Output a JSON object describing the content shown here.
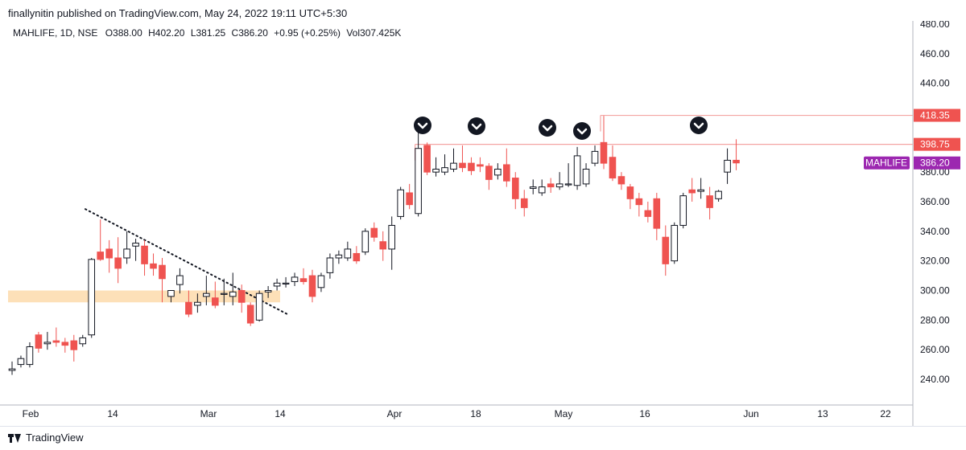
{
  "header": {
    "publisher_line": "finallynitin published on TradingView.com, May 24, 2022 19:11 UTC+5:30"
  },
  "legend": {
    "symbol": "MAHLIFE, 1D, NSE",
    "o_label": "O",
    "o_value": "388.00",
    "h_label": "H",
    "h_value": "402.20",
    "l_label": "L",
    "l_value": "381.25",
    "c_label": "C",
    "c_value": "386.20",
    "change": "+0.95 (+0.25%)",
    "vol_label": "Vol",
    "vol_value": "307.425K"
  },
  "footer": {
    "brand": "TradingView"
  },
  "colors": {
    "up": "#ffffff",
    "up_border": "#131722",
    "down": "#ef5350",
    "level": "#ef5350",
    "symbol_tag": "#9c27b0",
    "zone": "#fde0b8"
  },
  "chart_data": {
    "type": "candlestick",
    "y_ticks": [
      "480.00",
      "460.00",
      "440.00",
      "420.00",
      "400.00",
      "380.00",
      "360.00",
      "340.00",
      "320.00",
      "300.00",
      "280.00",
      "260.00",
      "240.00"
    ],
    "x_ticks": [
      "Feb",
      "14",
      "Mar",
      "14",
      "Apr",
      "18",
      "May",
      "16",
      "Jun",
      "13",
      "22"
    ],
    "ylim": [
      230,
      485
    ],
    "grid": false,
    "price_tags": [
      {
        "label": "418.35",
        "value": 418.35,
        "color": "#ef5350"
      },
      {
        "label": "398.75",
        "value": 398.75,
        "color": "#ef5350"
      },
      {
        "label": "MAHLIFE",
        "value": 386.2,
        "color": "#9c27b0",
        "price": "386.20"
      }
    ],
    "resistance_levels": [
      {
        "value": 398.75,
        "from": "Mar 30"
      },
      {
        "value": 418.35,
        "from": "May 2"
      }
    ],
    "support_zone": {
      "low": 292,
      "high": 300
    },
    "trendline": [
      {
        "date": "Feb 10",
        "value": 355
      },
      {
        "date": "Mar 14",
        "value": 284
      }
    ],
    "markers": [
      "Apr 6",
      "Apr 19",
      "Apr 28",
      "May 4",
      "May 24"
    ],
    "candles": [
      {
        "d": "Jan 27",
        "o": 246,
        "h": 252,
        "l": 243,
        "c": 247
      },
      {
        "d": "Jan 28",
        "o": 250,
        "h": 256,
        "l": 248,
        "c": 254
      },
      {
        "d": "Jan 31",
        "o": 250,
        "h": 265,
        "l": 248,
        "c": 262
      },
      {
        "d": "Feb 1",
        "o": 270,
        "h": 272,
        "l": 258,
        "c": 261
      },
      {
        "d": "Feb 2",
        "o": 264,
        "h": 272,
        "l": 260,
        "c": 265
      },
      {
        "d": "Feb 3",
        "o": 266,
        "h": 275,
        "l": 262,
        "c": 265
      },
      {
        "d": "Feb 4",
        "o": 265,
        "h": 268,
        "l": 258,
        "c": 263
      },
      {
        "d": "Feb 7",
        "o": 266,
        "h": 270,
        "l": 252,
        "c": 260
      },
      {
        "d": "Feb 8",
        "o": 264,
        "h": 270,
        "l": 262,
        "c": 268
      },
      {
        "d": "Feb 9",
        "o": 270,
        "h": 322,
        "l": 268,
        "c": 321
      },
      {
        "d": "Feb 10",
        "o": 326,
        "h": 348,
        "l": 320,
        "c": 321
      },
      {
        "d": "Feb 11",
        "o": 328,
        "h": 334,
        "l": 312,
        "c": 322
      },
      {
        "d": "Feb 14",
        "o": 322,
        "h": 336,
        "l": 305,
        "c": 315
      },
      {
        "d": "Feb 15",
        "o": 322,
        "h": 340,
        "l": 318,
        "c": 328
      },
      {
        "d": "Feb 16",
        "o": 330,
        "h": 335,
        "l": 320,
        "c": 332
      },
      {
        "d": "Feb 17",
        "o": 330,
        "h": 334,
        "l": 310,
        "c": 318
      },
      {
        "d": "Feb 18",
        "o": 318,
        "h": 325,
        "l": 310,
        "c": 315
      },
      {
        "d": "Feb 21",
        "o": 317,
        "h": 322,
        "l": 292,
        "c": 308
      },
      {
        "d": "Feb 22",
        "o": 296,
        "h": 300,
        "l": 292,
        "c": 300
      },
      {
        "d": "Feb 23",
        "o": 304,
        "h": 315,
        "l": 298,
        "c": 310
      },
      {
        "d": "Feb 24",
        "o": 292,
        "h": 300,
        "l": 282,
        "c": 284
      },
      {
        "d": "Feb 25",
        "o": 290,
        "h": 298,
        "l": 285,
        "c": 292
      },
      {
        "d": "Feb 28",
        "o": 296,
        "h": 310,
        "l": 290,
        "c": 298
      },
      {
        "d": "Mar 2",
        "o": 295,
        "h": 306,
        "l": 288,
        "c": 290
      },
      {
        "d": "Mar 3",
        "o": 298,
        "h": 308,
        "l": 290,
        "c": 298
      },
      {
        "d": "Mar 4",
        "o": 296,
        "h": 312,
        "l": 290,
        "c": 299
      },
      {
        "d": "Mar 7",
        "o": 300,
        "h": 304,
        "l": 285,
        "c": 292
      },
      {
        "d": "Mar 8",
        "o": 290,
        "h": 292,
        "l": 276,
        "c": 278
      },
      {
        "d": "Mar 9",
        "o": 280,
        "h": 300,
        "l": 279,
        "c": 298
      },
      {
        "d": "Mar 10",
        "o": 299,
        "h": 303,
        "l": 295,
        "c": 300
      },
      {
        "d": "Mar 11",
        "o": 303,
        "h": 308,
        "l": 300,
        "c": 305
      },
      {
        "d": "Mar 14",
        "o": 305,
        "h": 309,
        "l": 302,
        "c": 305
      },
      {
        "d": "Mar 15",
        "o": 306,
        "h": 312,
        "l": 303,
        "c": 309
      },
      {
        "d": "Mar 16",
        "o": 308,
        "h": 315,
        "l": 304,
        "c": 306
      },
      {
        "d": "Mar 17",
        "o": 310,
        "h": 314,
        "l": 292,
        "c": 296
      },
      {
        "d": "Mar 21",
        "o": 302,
        "h": 312,
        "l": 299,
        "c": 310
      },
      {
        "d": "Mar 22",
        "o": 312,
        "h": 325,
        "l": 308,
        "c": 322
      },
      {
        "d": "Mar 23",
        "o": 322,
        "h": 327,
        "l": 318,
        "c": 324
      },
      {
        "d": "Mar 24",
        "o": 322,
        "h": 333,
        "l": 320,
        "c": 328
      },
      {
        "d": "Mar 25",
        "o": 325,
        "h": 330,
        "l": 318,
        "c": 320
      },
      {
        "d": "Mar 28",
        "o": 326,
        "h": 342,
        "l": 324,
        "c": 340
      },
      {
        "d": "Mar 29",
        "o": 342,
        "h": 346,
        "l": 333,
        "c": 336
      },
      {
        "d": "Mar 30",
        "o": 333,
        "h": 340,
        "l": 320,
        "c": 328
      },
      {
        "d": "Mar 31",
        "o": 328,
        "h": 350,
        "l": 314,
        "c": 344
      },
      {
        "d": "Apr 1",
        "o": 350,
        "h": 370,
        "l": 348,
        "c": 368
      },
      {
        "d": "Apr 4",
        "o": 366,
        "h": 372,
        "l": 355,
        "c": 358
      },
      {
        "d": "Apr 5",
        "o": 352,
        "h": 408,
        "l": 350,
        "c": 396
      },
      {
        "d": "Apr 6",
        "o": 398,
        "h": 400,
        "l": 378,
        "c": 380
      },
      {
        "d": "Apr 7",
        "o": 380,
        "h": 390,
        "l": 377,
        "c": 382
      },
      {
        "d": "Apr 8",
        "o": 380,
        "h": 392,
        "l": 378,
        "c": 383
      },
      {
        "d": "Apr 11",
        "o": 382,
        "h": 396,
        "l": 380,
        "c": 386
      },
      {
        "d": "Apr 12",
        "o": 386,
        "h": 398,
        "l": 380,
        "c": 383
      },
      {
        "d": "Apr 13",
        "o": 386,
        "h": 390,
        "l": 378,
        "c": 381
      },
      {
        "d": "Apr 18",
        "o": 385,
        "h": 390,
        "l": 380,
        "c": 384
      },
      {
        "d": "Apr 19",
        "o": 384,
        "h": 386,
        "l": 368,
        "c": 375
      },
      {
        "d": "Apr 20",
        "o": 378,
        "h": 386,
        "l": 375,
        "c": 382
      },
      {
        "d": "Apr 21",
        "o": 385,
        "h": 396,
        "l": 370,
        "c": 374
      },
      {
        "d": "Apr 22",
        "o": 376,
        "h": 380,
        "l": 355,
        "c": 362
      },
      {
        "d": "Apr 25",
        "o": 362,
        "h": 368,
        "l": 350,
        "c": 356
      },
      {
        "d": "Apr 26",
        "o": 369,
        "h": 375,
        "l": 365,
        "c": 370
      },
      {
        "d": "Apr 27",
        "o": 366,
        "h": 375,
        "l": 364,
        "c": 370
      },
      {
        "d": "Apr 28",
        "o": 372,
        "h": 376,
        "l": 366,
        "c": 370
      },
      {
        "d": "Apr 29",
        "o": 370,
        "h": 380,
        "l": 368,
        "c": 372
      },
      {
        "d": "May 2",
        "o": 372,
        "h": 386,
        "l": 370,
        "c": 372
      },
      {
        "d": "May 4",
        "o": 371,
        "h": 397,
        "l": 368,
        "c": 391
      },
      {
        "d": "May 5",
        "o": 372,
        "h": 386,
        "l": 370,
        "c": 382
      },
      {
        "d": "May 6",
        "o": 386,
        "h": 398,
        "l": 384,
        "c": 394
      },
      {
        "d": "May 9",
        "o": 400,
        "h": 418,
        "l": 382,
        "c": 386
      },
      {
        "d": "May 10",
        "o": 390,
        "h": 398,
        "l": 374,
        "c": 376
      },
      {
        "d": "May 11",
        "o": 377,
        "h": 380,
        "l": 368,
        "c": 372
      },
      {
        "d": "May 12",
        "o": 370,
        "h": 372,
        "l": 355,
        "c": 362
      },
      {
        "d": "May 13",
        "o": 362,
        "h": 366,
        "l": 350,
        "c": 358
      },
      {
        "d": "May 16",
        "o": 354,
        "h": 360,
        "l": 346,
        "c": 350
      },
      {
        "d": "May 17",
        "o": 362,
        "h": 366,
        "l": 334,
        "c": 342
      },
      {
        "d": "May 18",
        "o": 336,
        "h": 344,
        "l": 310,
        "c": 318
      },
      {
        "d": "May 19",
        "o": 320,
        "h": 346,
        "l": 318,
        "c": 344
      },
      {
        "d": "May 20",
        "o": 344,
        "h": 366,
        "l": 342,
        "c": 364
      },
      {
        "d": "May 23",
        "o": 368,
        "h": 376,
        "l": 360,
        "c": 366
      },
      {
        "d": "May 24a",
        "o": 367,
        "h": 376,
        "l": 362,
        "c": 368
      },
      {
        "d": "May 24b",
        "o": 364,
        "h": 370,
        "l": 348,
        "c": 356
      },
      {
        "d": "May 24c",
        "o": 362,
        "h": 368,
        "l": 360,
        "c": 367
      },
      {
        "d": "May 24d",
        "o": 380,
        "h": 396,
        "l": 372,
        "c": 388
      },
      {
        "d": "May 24",
        "o": 388,
        "h": 402.2,
        "l": 381.25,
        "c": 386.2
      }
    ]
  }
}
